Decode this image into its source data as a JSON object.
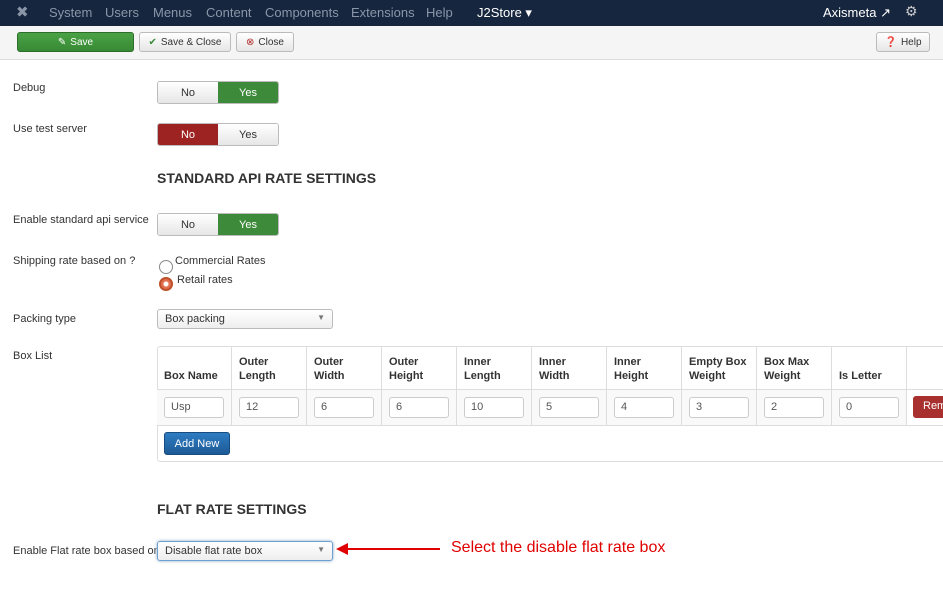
{
  "nav": {
    "items": [
      "System",
      "Users",
      "Menus",
      "Content",
      "Components",
      "Extensions",
      "Help",
      "J2Store"
    ],
    "user": "Axismeta"
  },
  "toolbar": {
    "save": "Save",
    "save_close": "Save & Close",
    "close": "Close",
    "help": "Help"
  },
  "fields": {
    "debug": "Debug",
    "test_server": "Use test server",
    "no": "No",
    "yes": "Yes",
    "enable_std": "Enable standard api service",
    "rate_based": "Shipping rate based on ?",
    "commercial": "Commercial Rates",
    "retail": "Retail rates",
    "packing": "Packing type",
    "packing_value": "Box packing",
    "box_list": "Box List",
    "flat_label": "Enable Flat rate box based on",
    "flat_value": "Disable flat rate box"
  },
  "headings": {
    "standard": "STANDARD API RATE SETTINGS",
    "flat": "FLAT RATE SETTINGS"
  },
  "table": {
    "headers": [
      "Box Name",
      "Outer Length",
      "Outer Width",
      "Outer Height",
      "Inner Length",
      "Inner Width",
      "Inner Height",
      "Empty Box Weight",
      "Box Max Weight",
      "Is Letter"
    ],
    "row": [
      "Usp",
      "12",
      "6",
      "6",
      "10",
      "5",
      "4",
      "3",
      "2",
      "0"
    ],
    "remove": "Remove",
    "add_new": "Add New"
  },
  "annotation": "Select the disable flat rate box",
  "colors": {
    "nav": "#17263f",
    "green": "#3c8a3a",
    "red": "#9c2321",
    "blue": "#1f5f9e",
    "annotation": "#e00000"
  }
}
